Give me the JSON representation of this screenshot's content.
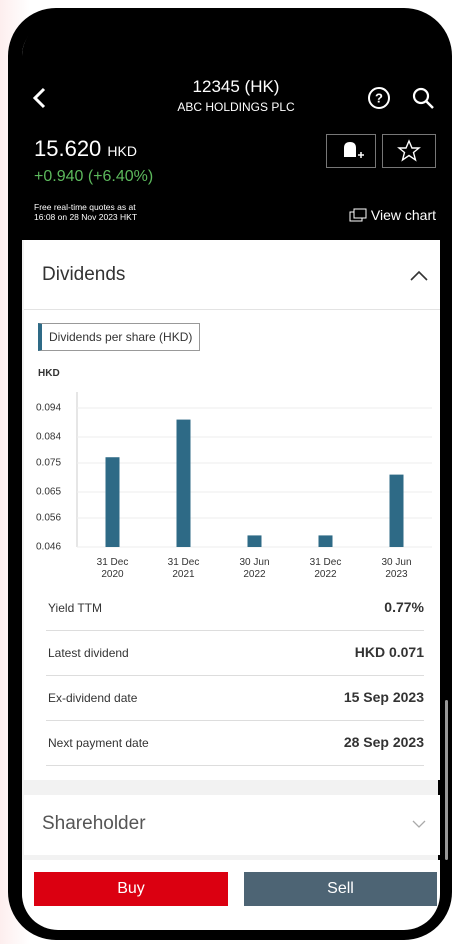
{
  "header": {
    "title": "12345 (HK)",
    "subtitle": "ABC HOLDINGS PLC"
  },
  "quote": {
    "price": "15.620",
    "currency": "HKD",
    "change": "+0.940 (+6.40%)",
    "note": "Free real-time quotes as at\n16:08 on 28 Nov 2023 HKT",
    "view_chart": "View chart"
  },
  "dividends": {
    "title": "Dividends",
    "chart_data": {
      "type": "bar",
      "legend": "Dividends per share (HKD)",
      "y_label": "HKD",
      "categories": [
        "31 Dec\n2020",
        "31 Dec\n2021",
        "30 Jun\n2022",
        "31 Dec\n2022",
        "30 Jun\n2023"
      ],
      "values": [
        0.077,
        0.09,
        0.05,
        0.05,
        0.071
      ],
      "color": "#2e6a86",
      "ylim": [
        0.046,
        0.094
      ],
      "yticks": [
        0.046,
        0.056,
        0.065,
        0.075,
        0.084,
        0.094
      ],
      "grid": true
    },
    "rows": [
      [
        "Yield TTM",
        "0.77%"
      ],
      [
        "Latest dividend",
        "HKD 0.071"
      ],
      [
        "Ex-dividend date",
        "15 Sep 2023"
      ],
      [
        "Next payment date",
        "28 Sep 2023"
      ]
    ]
  },
  "shareholder": {
    "title": "Shareholder"
  },
  "actions": {
    "buy": "Buy",
    "sell": "Sell"
  }
}
